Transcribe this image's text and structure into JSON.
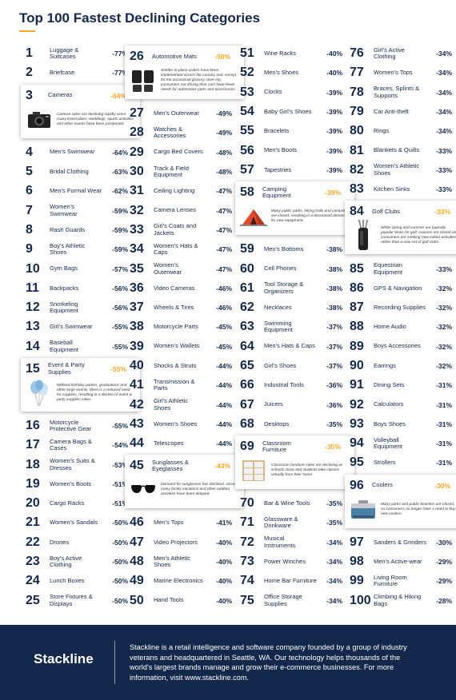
{
  "title": "Top 100 Fastest Declining Categories",
  "columns": [
    [
      {
        "rank": "1",
        "name": "Luggage & Suitcases",
        "pct": "-77%"
      },
      {
        "rank": "2",
        "name": "Briefcase",
        "pct": "-77%"
      },
      {
        "rank": "3",
        "name": "Cameras",
        "pct": "-64%",
        "featured": true,
        "icon": "camera-icon",
        "desc": "Camera sales are declining rapidly since many travel plans, weddings, sports activities and other events have been postponed."
      },
      {
        "rank": "4",
        "name": "Men's Swimwear",
        "pct": "-64%"
      },
      {
        "rank": "5",
        "name": "Bridal Clothing",
        "pct": "-63%"
      },
      {
        "rank": "6",
        "name": "Men's Formal Wear",
        "pct": "-62%"
      },
      {
        "rank": "7",
        "name": "Women's Swimwear",
        "pct": "-59%"
      },
      {
        "rank": "8",
        "name": "Rash Guards",
        "pct": "-59%"
      },
      {
        "rank": "9",
        "name": "Boy's Athletic Shoes",
        "pct": "-59%"
      },
      {
        "rank": "10",
        "name": "Gym Bags",
        "pct": "-57%"
      },
      {
        "rank": "11",
        "name": "Backpacks",
        "pct": "-56%"
      },
      {
        "rank": "12",
        "name": "Snorkeling Equipment",
        "pct": "-56%"
      },
      {
        "rank": "13",
        "name": "Girl's Swimwear",
        "pct": "-55%"
      },
      {
        "rank": "14",
        "name": "Baseball Equipment",
        "pct": "-55%"
      },
      {
        "rank": "15",
        "name": "Event & Party Supplies",
        "pct": "-55%",
        "featured": true,
        "icon": "balloons-icon",
        "desc": "Without birthday parties, graduations and other large events, there is a reduced need for supplies, resulting in a decline of event & party supplies sales."
      },
      {
        "rank": "16",
        "name": "Motorcycle Protective Gear",
        "pct": "-55%"
      },
      {
        "rank": "17",
        "name": "Camera Bags & Cases",
        "pct": "-54%"
      },
      {
        "rank": "18",
        "name": "Women's Suits & Dresses",
        "pct": "-53%"
      },
      {
        "rank": "19",
        "name": "Women's Boots",
        "pct": "-51%"
      },
      {
        "rank": "20",
        "name": "Cargo Racks",
        "pct": "-51%"
      },
      {
        "rank": "21",
        "name": "Women's Sandals",
        "pct": "-50%"
      },
      {
        "rank": "22",
        "name": "Drones",
        "pct": "-50%"
      },
      {
        "rank": "23",
        "name": "Boy's Active Clothing",
        "pct": "-50%"
      },
      {
        "rank": "24",
        "name": "Lunch Boxes",
        "pct": "-50%"
      },
      {
        "rank": "25",
        "name": "Store Fixtures & Displays",
        "pct": "-50%"
      }
    ],
    [
      {
        "rank": "26",
        "name": "Automotive Mats",
        "pct": "-50%",
        "featured": true,
        "icon": "car-mats-icon",
        "desc": "Shelter-in-place orders have been implemented across the country and, except for the occasional grocery store trip, consumers not driving their cars have fewer needs for automotive parts and accessories."
      },
      {
        "rank": "27",
        "name": "Men's Outerwear",
        "pct": "-49%"
      },
      {
        "rank": "28",
        "name": "Watches & Accessories",
        "pct": "-49%"
      },
      {
        "rank": "29",
        "name": "Cargo Bed Covers",
        "pct": "-48%"
      },
      {
        "rank": "30",
        "name": "Track & Field Equipment",
        "pct": "-48%"
      },
      {
        "rank": "31",
        "name": "Ceiling Lighting",
        "pct": "-47%"
      },
      {
        "rank": "32",
        "name": "Camera Lenses",
        "pct": "-47%"
      },
      {
        "rank": "33",
        "name": "Girl's Coats and Jackets",
        "pct": "-47%"
      },
      {
        "rank": "34",
        "name": "Women's Hats & Caps",
        "pct": "-47%"
      },
      {
        "rank": "35",
        "name": "Women's Outerwear",
        "pct": "-47%"
      },
      {
        "rank": "36",
        "name": "Video Cameras",
        "pct": "-46%"
      },
      {
        "rank": "37",
        "name": "Wheels & Tires",
        "pct": "-46%"
      },
      {
        "rank": "38",
        "name": "Motorcycle Parts",
        "pct": "-45%"
      },
      {
        "rank": "39",
        "name": "Women's Wallets",
        "pct": "-45%"
      },
      {
        "rank": "40",
        "name": "Shocks & Struts",
        "pct": "-44%"
      },
      {
        "rank": "41",
        "name": "Transmission & Parts",
        "pct": "-44%"
      },
      {
        "rank": "42",
        "name": "Girl's Athletic Shoes",
        "pct": "-44%"
      },
      {
        "rank": "43",
        "name": "Women's Shoes",
        "pct": "-44%"
      },
      {
        "rank": "44",
        "name": "Telescopes",
        "pct": "-44%"
      },
      {
        "rank": "45",
        "name": "Sunglasses & Eyeglasses",
        "pct": "-43%",
        "featured": true,
        "icon": "sunglasses-icon",
        "desc": "Demand for sunglasses has declined, since many family vacations and other outdoor activities have been delayed."
      },
      {
        "rank": "46",
        "name": "Men's Tops",
        "pct": "-41%"
      },
      {
        "rank": "47",
        "name": "Video Projectors",
        "pct": "-40%"
      },
      {
        "rank": "48",
        "name": "Men's Athletic Shoes",
        "pct": "-40%"
      },
      {
        "rank": "49",
        "name": "Marine Electronics",
        "pct": "-40%"
      },
      {
        "rank": "50",
        "name": "Hand Tools",
        "pct": "-40%"
      }
    ],
    [
      {
        "rank": "51",
        "name": "Wine Racks",
        "pct": "-40%"
      },
      {
        "rank": "52",
        "name": "Men's Shoes",
        "pct": "-40%"
      },
      {
        "rank": "53",
        "name": "Clocks",
        "pct": "-39%"
      },
      {
        "rank": "54",
        "name": "Baby Girl's Shoes",
        "pct": "-39%"
      },
      {
        "rank": "55",
        "name": "Bracelets",
        "pct": "-39%"
      },
      {
        "rank": "56",
        "name": "Men's Boots",
        "pct": "-39%"
      },
      {
        "rank": "57",
        "name": "Tapestries",
        "pct": "-39%"
      },
      {
        "rank": "58",
        "name": "Camping Equipment",
        "pct": "-39%",
        "featured": true,
        "icon": "tent-icon",
        "desc": "Many public parks, hiking trails and campsites are closed, resulting in a decreased demand for new equipment."
      },
      {
        "rank": "59",
        "name": "Men's Bottoms",
        "pct": "-38%"
      },
      {
        "rank": "60",
        "name": "Cell Phones",
        "pct": "-38%"
      },
      {
        "rank": "61",
        "name": "Tool Storage & Organizers",
        "pct": "-38%"
      },
      {
        "rank": "62",
        "name": "Necklaces",
        "pct": "-38%"
      },
      {
        "rank": "63",
        "name": "Swimming Equipment",
        "pct": "-37%"
      },
      {
        "rank": "64",
        "name": "Men's Hats & Caps",
        "pct": "-37%"
      },
      {
        "rank": "65",
        "name": "Girl's Shoes",
        "pct": "-37%"
      },
      {
        "rank": "66",
        "name": "Industrial Tools",
        "pct": "-36%"
      },
      {
        "rank": "67",
        "name": "Juicers",
        "pct": "-36%"
      },
      {
        "rank": "68",
        "name": "Desktops",
        "pct": "-35%"
      },
      {
        "rank": "69",
        "name": "Classroom Furniture",
        "pct": "-35%",
        "featured": true,
        "icon": "shelf-icon",
        "desc": "Classroom furniture sales are declining as schools close and students take classes virtually from their home."
      },
      {
        "rank": "70",
        "name": "Bar & Wine Tools",
        "pct": "-35%"
      },
      {
        "rank": "71",
        "name": "Glassware & Drinkware",
        "pct": "-35%"
      },
      {
        "rank": "72",
        "name": "Musical Instruments",
        "pct": "-34%"
      },
      {
        "rank": "73",
        "name": "Power Winches",
        "pct": "-34%"
      },
      {
        "rank": "74",
        "name": "Home Bar Furniture",
        "pct": "-34%"
      },
      {
        "rank": "75",
        "name": "Office Storage Supplies",
        "pct": "-34%"
      }
    ],
    [
      {
        "rank": "76",
        "name": "Girl's Active Clothing",
        "pct": "-34%"
      },
      {
        "rank": "77",
        "name": "Women's Tops",
        "pct": "-34%"
      },
      {
        "rank": "78",
        "name": "Braces, Splints & Supports",
        "pct": "-34%"
      },
      {
        "rank": "79",
        "name": "Car Anti-theft",
        "pct": "-34%"
      },
      {
        "rank": "80",
        "name": "Rings",
        "pct": "-34%"
      },
      {
        "rank": "81",
        "name": "Blankets & Quilts",
        "pct": "-33%"
      },
      {
        "rank": "82",
        "name": "Women's Athletic Shoes",
        "pct": "-33%"
      },
      {
        "rank": "83",
        "name": "Kitchen Sinks",
        "pct": "-33%"
      },
      {
        "rank": "84",
        "name": "Golf Clubs",
        "pct": "-33%",
        "featured": true,
        "icon": "golf-bag-icon",
        "desc": "While spring and summer are typically popular times for golf, courses are closed and consumers are seeking new indoor activities, rather than a new set of golf clubs."
      },
      {
        "rank": "85",
        "name": "Equestrian Equipment",
        "pct": "-33%"
      },
      {
        "rank": "86",
        "name": "GPS & Navigation",
        "pct": "-32%"
      },
      {
        "rank": "87",
        "name": "Recording Supplies",
        "pct": "-32%"
      },
      {
        "rank": "88",
        "name": "Home Audio",
        "pct": "-32%"
      },
      {
        "rank": "89",
        "name": "Boys Accessories",
        "pct": "-32%"
      },
      {
        "rank": "90",
        "name": "Earrings",
        "pct": "-32%"
      },
      {
        "rank": "91",
        "name": "Dining Sets",
        "pct": "-31%"
      },
      {
        "rank": "92",
        "name": "Calculators",
        "pct": "-31%"
      },
      {
        "rank": "93",
        "name": "Boys Shoes",
        "pct": "-31%"
      },
      {
        "rank": "94",
        "name": "Volleyball Equipment",
        "pct": "-31%"
      },
      {
        "rank": "95",
        "name": "Strollers",
        "pct": "-31%"
      },
      {
        "rank": "96",
        "name": "Coolers",
        "pct": "-30%",
        "featured": true,
        "icon": "cooler-icon",
        "desc": "Many parks and public beaches are closed, so consumers no longer have a need to buy new coolers."
      },
      {
        "rank": "97",
        "name": "Sanders & Grinders",
        "pct": "-30%"
      },
      {
        "rank": "98",
        "name": "Men's Active-wear",
        "pct": "-29%"
      },
      {
        "rank": "99",
        "name": "Living Room Furniture",
        "pct": "-29%"
      },
      {
        "rank": "100",
        "name": "Climbing & Hiking Bags",
        "pct": "-28%"
      }
    ]
  ],
  "footer": {
    "brand": "Stackline",
    "text": "Stackline is a retail intelligence and software company founded by a group of industry veterans and headquartered in Seattle, WA. Our technology helps thousands of the world's largest brands manage and grow their e-commerce businesses. For more information, visit www.stackline.com."
  },
  "colors": {
    "navy": "#13284a",
    "accent": "#f5a623"
  }
}
